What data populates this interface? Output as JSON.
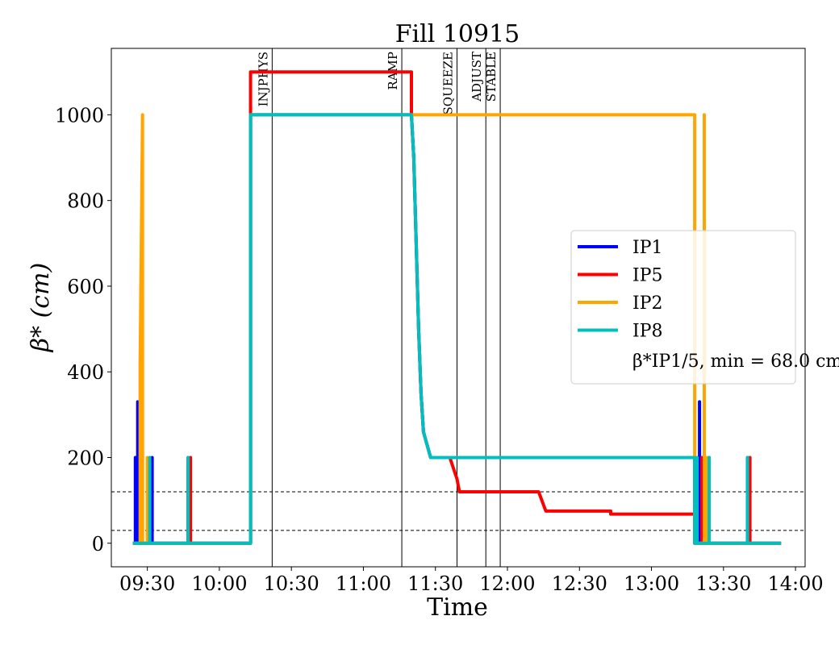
{
  "chart_data": {
    "type": "line",
    "title": "Fill 10915",
    "xlabel": "Time",
    "ylabel": "β* (cm)",
    "x_unit": "clock time HH:MM",
    "xlim": [
      "09:15",
      "14:04"
    ],
    "ylim": [
      -55,
      1155
    ],
    "x_ticks": [
      "09:30",
      "10:00",
      "10:30",
      "11:00",
      "11:30",
      "12:00",
      "12:30",
      "13:00",
      "13:30",
      "14:00"
    ],
    "y_ticks": [
      0,
      200,
      400,
      600,
      800,
      1000
    ],
    "grid": false,
    "legend_position": "center-right",
    "legend_note": "β*IP1/5, min = 68.0 cm",
    "h_reference_lines": [
      120,
      30
    ],
    "mode_markers": [
      {
        "label": "INJPHYS",
        "time": "10:22"
      },
      {
        "label": "RAMP",
        "time": "11:16"
      },
      {
        "label": "SQUEEZE",
        "time": "11:39"
      },
      {
        "label": "ADJUST",
        "time": "11:51"
      },
      {
        "label": "STABLE",
        "time": "11:57"
      }
    ],
    "series": [
      {
        "name": "IP1",
        "color": "#0000ff",
        "points": [
          [
            "09:24",
            0
          ],
          [
            "09:25",
            0
          ],
          [
            "09:25",
            200
          ],
          [
            "09:25",
            0
          ],
          [
            "09:26",
            0
          ],
          [
            "09:26",
            330
          ],
          [
            "09:26",
            0
          ],
          [
            "09:32",
            0
          ],
          [
            "09:32",
            200
          ],
          [
            "09:32",
            0
          ],
          [
            "09:47",
            0
          ],
          [
            "09:47",
            200
          ],
          [
            "09:47",
            0
          ],
          [
            "10:13",
            0
          ],
          [
            "10:13",
            660
          ],
          [
            "10:13",
            1000
          ],
          [
            "11:20",
            1000
          ],
          [
            "11:21",
            900
          ],
          [
            "11:22",
            700
          ],
          [
            "11:23",
            500
          ],
          [
            "11:24",
            350
          ],
          [
            "11:25",
            260
          ],
          [
            "11:28",
            200
          ],
          [
            "13:18",
            200
          ],
          [
            "13:18",
            0
          ],
          [
            "13:20",
            0
          ],
          [
            "13:20",
            330
          ],
          [
            "13:20",
            0
          ],
          [
            "13:24",
            0
          ],
          [
            "13:24",
            200
          ],
          [
            "13:24",
            0
          ],
          [
            "13:40",
            0
          ],
          [
            "13:40",
            200
          ],
          [
            "13:40",
            0
          ],
          [
            "13:54",
            0
          ]
        ]
      },
      {
        "name": "IP5",
        "color": "#ff0000",
        "points": [
          [
            "09:24",
            0
          ],
          [
            "09:48",
            0
          ],
          [
            "09:48",
            200
          ],
          [
            "09:48",
            0
          ],
          [
            "10:13",
            0
          ],
          [
            "10:13",
            1100
          ],
          [
            "11:20",
            1100
          ],
          [
            "11:20",
            1000
          ],
          [
            "11:21",
            900
          ],
          [
            "11:22",
            700
          ],
          [
            "11:23",
            500
          ],
          [
            "11:24",
            350
          ],
          [
            "11:25",
            260
          ],
          [
            "11:28",
            200
          ],
          [
            "11:36",
            200
          ],
          [
            "11:39",
            150
          ],
          [
            "11:40",
            120
          ],
          [
            "12:13",
            120
          ],
          [
            "12:16",
            75
          ],
          [
            "12:43",
            75
          ],
          [
            "12:43",
            68
          ],
          [
            "13:18",
            68
          ],
          [
            "13:18",
            0
          ],
          [
            "13:21",
            0
          ],
          [
            "13:21",
            200
          ],
          [
            "13:21",
            0
          ],
          [
            "13:41",
            0
          ],
          [
            "13:41",
            200
          ],
          [
            "13:41",
            0
          ],
          [
            "13:54",
            0
          ]
        ]
      },
      {
        "name": "IP2",
        "color": "#ffa500",
        "points": [
          [
            "09:24",
            0
          ],
          [
            "09:27",
            0
          ],
          [
            "09:27",
            420
          ],
          [
            "09:28",
            1000
          ],
          [
            "09:28",
            0
          ],
          [
            "09:30",
            0
          ],
          [
            "09:30",
            200
          ],
          [
            "09:30",
            0
          ],
          [
            "10:13",
            0
          ],
          [
            "10:13",
            1000
          ],
          [
            "13:18",
            1000
          ],
          [
            "13:18",
            0
          ],
          [
            "13:22",
            0
          ],
          [
            "13:22",
            1000
          ],
          [
            "13:22",
            0
          ],
          [
            "13:23",
            0
          ],
          [
            "13:23",
            200
          ],
          [
            "13:23",
            0
          ],
          [
            "13:54",
            0
          ]
        ]
      },
      {
        "name": "IP8",
        "color": "#00bfbf",
        "points": [
          [
            "09:24",
            0
          ],
          [
            "09:31",
            0
          ],
          [
            "09:31",
            200
          ],
          [
            "09:31",
            0
          ],
          [
            "09:47",
            0
          ],
          [
            "09:47",
            200
          ],
          [
            "09:47",
            0
          ],
          [
            "10:13",
            0
          ],
          [
            "10:13",
            1000
          ],
          [
            "11:20",
            1000
          ],
          [
            "11:21",
            900
          ],
          [
            "11:22",
            700
          ],
          [
            "11:23",
            500
          ],
          [
            "11:24",
            350
          ],
          [
            "11:25",
            260
          ],
          [
            "11:28",
            200
          ],
          [
            "13:18",
            200
          ],
          [
            "13:18",
            0
          ],
          [
            "13:19",
            0
          ],
          [
            "13:19",
            200
          ],
          [
            "13:19",
            0
          ],
          [
            "13:24",
            0
          ],
          [
            "13:24",
            200
          ],
          [
            "13:24",
            0
          ],
          [
            "13:40",
            0
          ],
          [
            "13:40",
            200
          ],
          [
            "13:40",
            0
          ],
          [
            "13:54",
            0
          ]
        ]
      }
    ]
  }
}
